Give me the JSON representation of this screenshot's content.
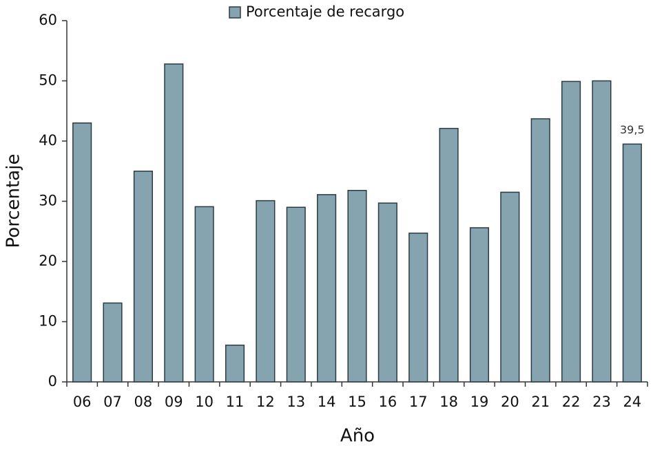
{
  "chart_data": {
    "type": "bar",
    "x_label": "Año",
    "y_label": "Porcentaje",
    "categories": [
      "06",
      "07",
      "08",
      "09",
      "10",
      "11",
      "12",
      "13",
      "14",
      "15",
      "16",
      "17",
      "18",
      "19",
      "20",
      "21",
      "22",
      "23",
      "24"
    ],
    "series": [
      {
        "name": "Porcentaje de recargo",
        "color": "#86a4b0",
        "values": [
          43.0,
          13.1,
          35.0,
          52.8,
          29.1,
          6.1,
          30.1,
          29.0,
          31.1,
          31.8,
          29.7,
          24.7,
          42.1,
          25.6,
          31.5,
          43.7,
          49.9,
          50.0,
          39.5
        ],
        "value_labels": [
          null,
          null,
          null,
          null,
          null,
          null,
          null,
          null,
          null,
          null,
          null,
          null,
          null,
          null,
          null,
          null,
          null,
          null,
          "39,5"
        ]
      }
    ],
    "ylim": [
      0,
      60
    ],
    "yticks": [
      0,
      10,
      20,
      30,
      40,
      50,
      60
    ],
    "grid": false,
    "legend": "top"
  }
}
